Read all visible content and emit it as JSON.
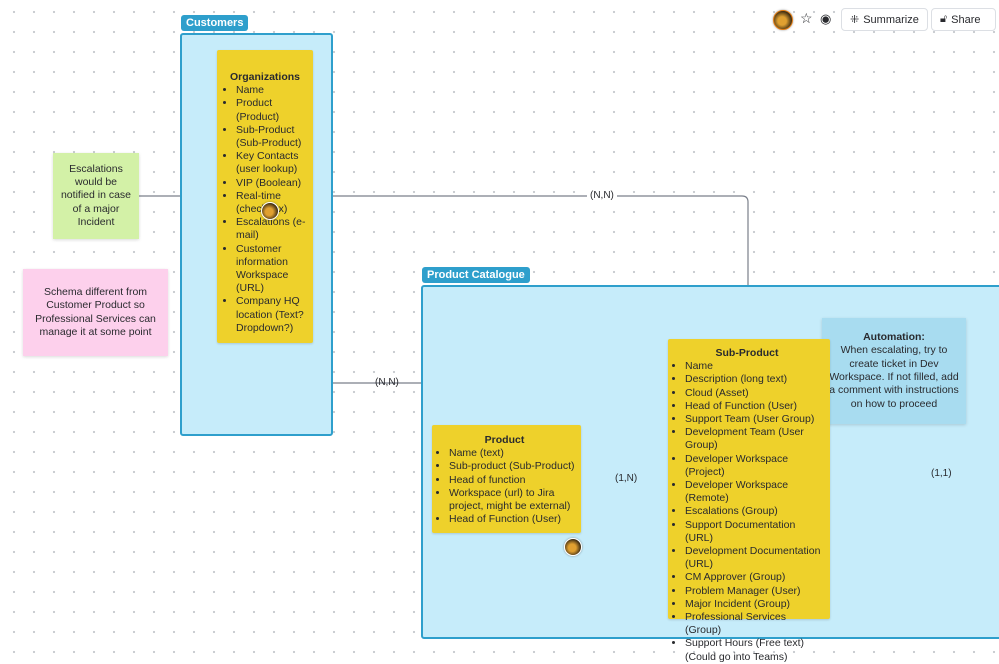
{
  "toolbar": {
    "summarize_label": "Summarize",
    "share_label": "Share",
    "icons": [
      "avatar",
      "star-icon",
      "eye-icon",
      "sparkle-icon",
      "lock-icon",
      "link-icon"
    ]
  },
  "frames": {
    "customers": "Customers",
    "product_catalogue": "Product Catalogue"
  },
  "organizations": {
    "title": "Organizations",
    "items": [
      "Name",
      "Product (Product)",
      "Sub-Product (Sub-Product)",
      "Key Contacts (user lookup)",
      "VIP (Boolean)",
      "Real-time (checkbox)",
      "Escalations (e-mail)",
      "Customer information Workspace (URL)",
      "Company HQ location (Text? Dropdown?)"
    ]
  },
  "product": {
    "title": "Product",
    "items": [
      "Name (text)",
      "Sub-product (Sub-Product)",
      "Head of function",
      "Workspace (url) to Jira project, might be external)",
      "Head of Function (User)"
    ]
  },
  "sub_product": {
    "title": "Sub-Product",
    "items": [
      "Name",
      "Description (long text)",
      "Cloud (Asset)",
      "Head of Function (User)",
      "Support Team (User Group)",
      "Development Team (User Group)",
      "Developer Workspace (Project)",
      "Developer Workspace (Remote)",
      "Escalations (Group)",
      "Support Documentation (URL)",
      "Development Documentation (URL)",
      "CM Approver (Group)",
      "Problem Manager (User)",
      "Major Incident (Group)",
      "Professional Services (Group)",
      "Support Hours (Free text) (Could go into Teams)"
    ]
  },
  "stickies": {
    "escalations": "Escalations would be notified in case of a major Incident",
    "schema": "Schema different from Customer Product so Professional Services can manage it at some point",
    "automation_title": "Automation:",
    "automation_body": "When escalating, try to create ticket in Dev Workspace. If not filled, add a comment with instructions on how to proceed"
  },
  "connectors": {
    "org_sub": "(N,N)",
    "org_product": "(N,N)",
    "product_sub": "(1,N)",
    "right_sub": "(1,1)"
  },
  "colors": {
    "frame": "#c6ecfa",
    "frame_border": "#2e9fcc",
    "card": "#eed12b",
    "green": "#d3f1a7",
    "pink": "#fdd0ec",
    "automation": "#a8dcf0"
  }
}
